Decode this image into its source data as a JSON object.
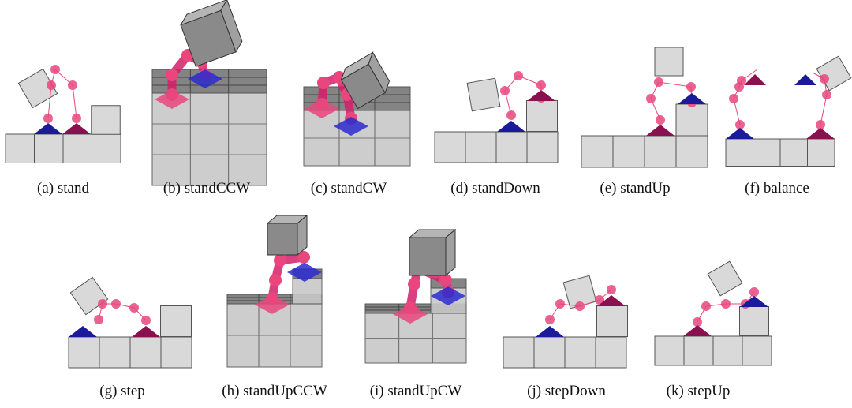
{
  "captions": [
    "(a) stand",
    "(b) standCCW",
    "(c) standCW",
    "(d) standDown",
    "(e) standUp",
    "(f) balance",
    "(g) step",
    "(h) standUpCCW",
    "(i) standUpCW",
    "(j) stepDown",
    "(k) stepUp"
  ]
}
